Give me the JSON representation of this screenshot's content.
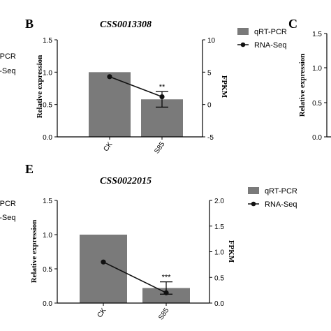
{
  "colors": {
    "bar": "#7a7a7a",
    "line": "#111111",
    "axis": "#000000"
  },
  "left_fragments": {
    "top": [
      "qRT-PCR",
      "RNA-Seq"
    ],
    "bottom": [
      "qRT-PCR",
      "RNA-Seq"
    ]
  },
  "panels": {
    "b": {
      "letter": "B"
    },
    "c": {
      "letter": "C",
      "ylabel": "Relative expression",
      "yticks": [
        "1.5",
        "1.0",
        "0.5",
        "0.0"
      ]
    },
    "e": {
      "letter": "E"
    }
  },
  "chart_data": [
    {
      "panel": "B",
      "type": "bar",
      "title": "CSS0013308",
      "categories": [
        "CK",
        "S85"
      ],
      "ylabel": "Relative expression",
      "ylabel2": "FPKM",
      "ylim": [
        0,
        1.5
      ],
      "y2lim": [
        -5,
        10
      ],
      "yticks": [
        "0.0",
        "0.5",
        "1.0",
        "1.5"
      ],
      "y2ticks": [
        "-5",
        "0",
        "5",
        "10"
      ],
      "series": [
        {
          "name": "qRT-PCR",
          "type": "bar",
          "axis": "left",
          "values": [
            1.0,
            0.58
          ],
          "errors": [
            0,
            0.12
          ]
        },
        {
          "name": "RNA-Seq",
          "type": "line",
          "axis": "right",
          "values": [
            4.3,
            1.2
          ]
        }
      ],
      "annotations": [
        {
          "category": "S85",
          "text": "**"
        }
      ],
      "legend": "top-right"
    },
    {
      "panel": "E",
      "type": "bar",
      "title": "CSS0022015",
      "categories": [
        "CK",
        "S85"
      ],
      "ylabel": "Relative expression",
      "ylabel2": "FPKM",
      "ylim": [
        0,
        1.5
      ],
      "y2lim": [
        0,
        2.0
      ],
      "yticks": [
        "0.0",
        "0.5",
        "1.0",
        "1.5"
      ],
      "y2ticks": [
        "0.0",
        "0.5",
        "1.0",
        "1.5",
        "2.0"
      ],
      "series": [
        {
          "name": "qRT-PCR",
          "type": "bar",
          "axis": "left",
          "values": [
            1.0,
            0.22
          ],
          "errors": [
            0,
            0.09
          ]
        },
        {
          "name": "RNA-Seq",
          "type": "line",
          "axis": "right",
          "values": [
            0.8,
            0.2
          ]
        }
      ],
      "annotations": [
        {
          "category": "S85",
          "text": "***"
        }
      ],
      "legend": "top-right"
    }
  ]
}
